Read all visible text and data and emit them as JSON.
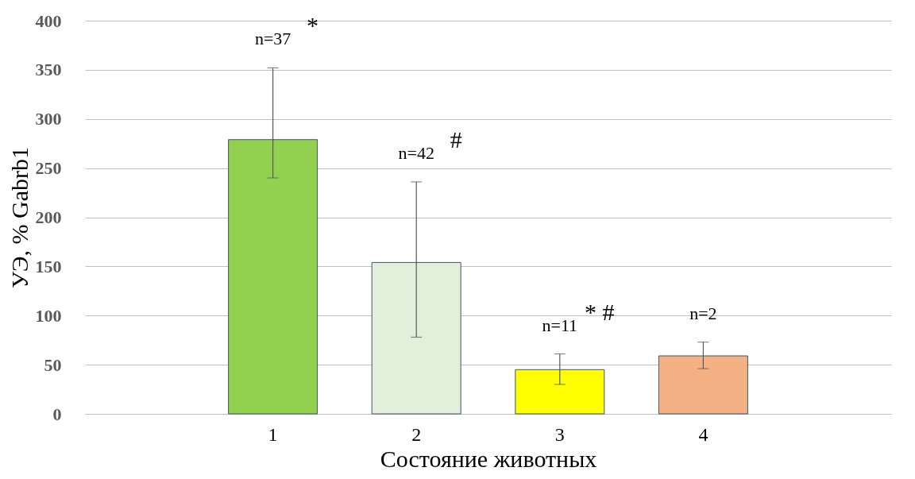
{
  "chart_data": {
    "type": "bar",
    "xlabel": "Состояние животных",
    "ylabel": "УЭ, % Gabrb1",
    "categories": [
      "1",
      "2",
      "3",
      "4"
    ],
    "values": [
      279,
      154,
      45,
      59
    ],
    "colors": [
      "#92d050",
      "#e2efda",
      "#ffff00",
      "#f4b183"
    ],
    "errors": [
      [
        240,
        352
      ],
      [
        78,
        236
      ],
      [
        30,
        61
      ],
      [
        46,
        73
      ]
    ],
    "ylim": [
      0,
      400
    ],
    "yticks": [
      0,
      50,
      100,
      150,
      200,
      250,
      300,
      350,
      400
    ],
    "grid": "y",
    "annotations": [
      "n=37",
      "*",
      "n=42",
      "#",
      "n=11",
      "* #",
      "n=2"
    ]
  }
}
